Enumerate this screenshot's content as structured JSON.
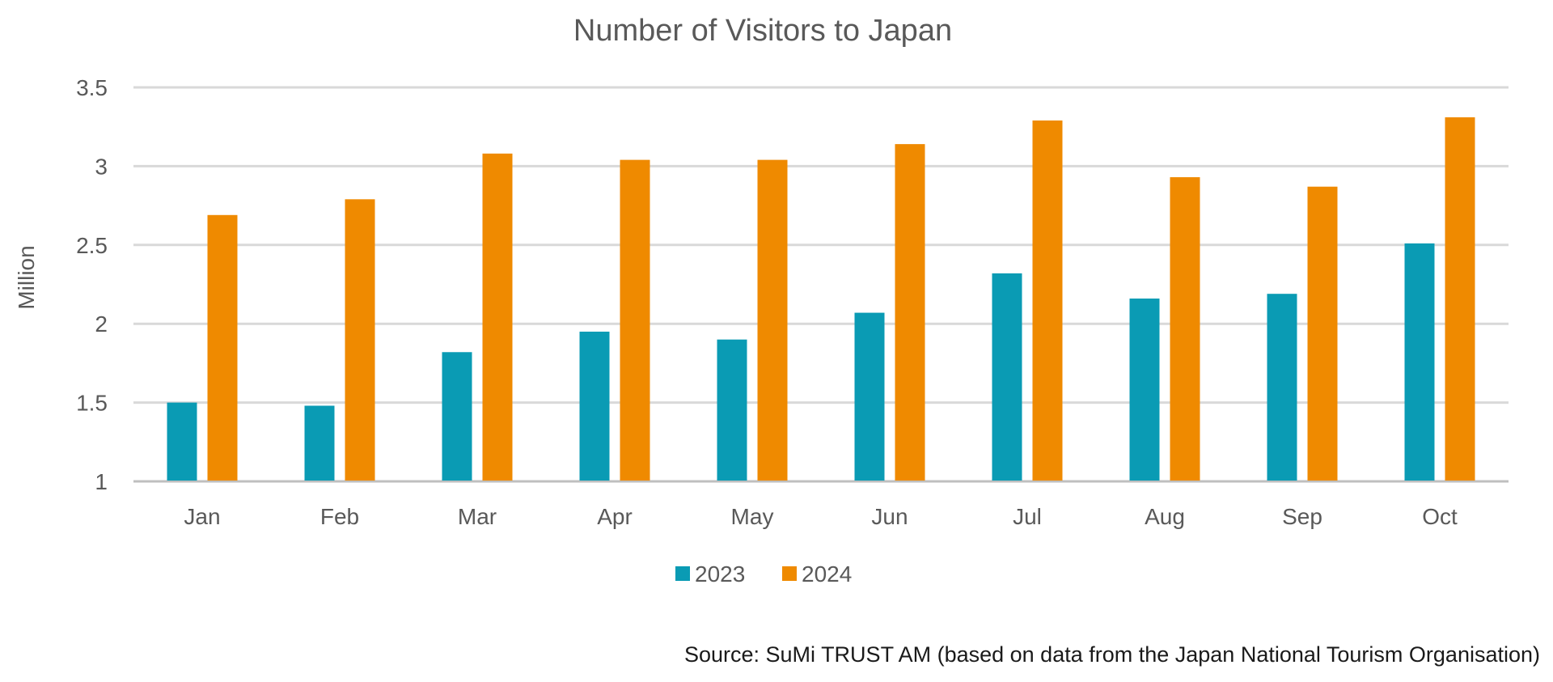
{
  "chart_data": {
    "type": "bar",
    "title": "Number of Visitors to Japan",
    "xlabel": "",
    "ylabel": "Million",
    "ylim": [
      1,
      3.5
    ],
    "yticks": [
      "1",
      "1.5",
      "2",
      "2.5",
      "3",
      "3.5"
    ],
    "grid": true,
    "legend_position": "bottom",
    "categories": [
      "Jan",
      "Feb",
      "Mar",
      "Apr",
      "May",
      "Jun",
      "Jul",
      "Aug",
      "Sep",
      "Oct"
    ],
    "series": [
      {
        "name": "2023",
        "color": "#0A9BB4",
        "values": [
          1.5,
          1.48,
          1.82,
          1.95,
          1.9,
          2.07,
          2.32,
          2.16,
          2.19,
          2.51
        ]
      },
      {
        "name": "2024",
        "color": "#EF8A00",
        "values": [
          2.69,
          2.79,
          3.08,
          3.04,
          3.04,
          3.14,
          3.29,
          2.93,
          2.87,
          3.31
        ]
      }
    ],
    "source": "Source: SuMi TRUST AM (based on data from the Japan National Tourism Organisation)"
  }
}
